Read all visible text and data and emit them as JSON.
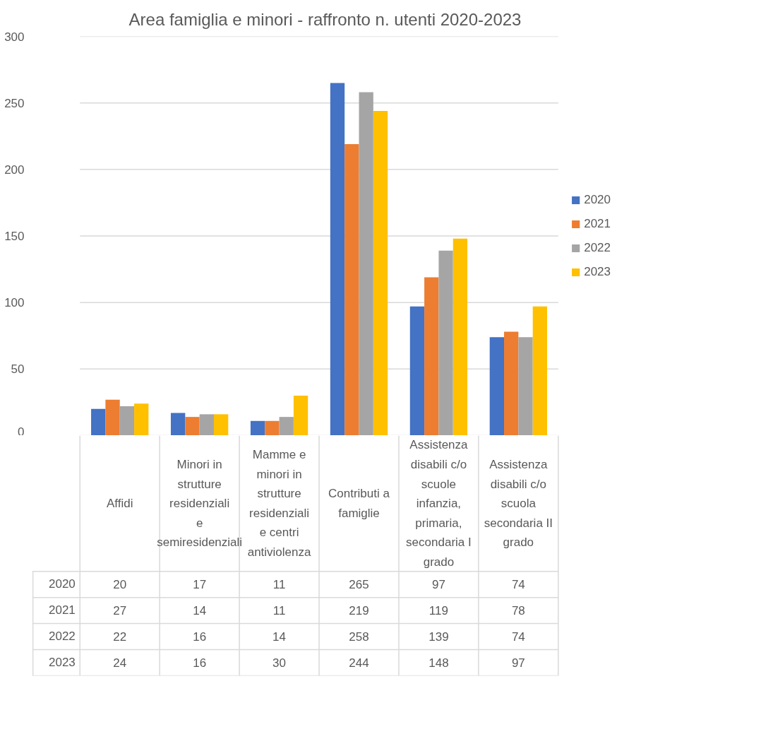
{
  "chart_data": {
    "type": "bar",
    "title": "Area famiglia e minori - raffronto n. utenti 2020-2023",
    "categories": [
      "Affidi",
      "Minori in strutture residenziali e semiresidenziali",
      "Mamme e minori in strutture residenziali e centri antiviolenza",
      "Contributi a famiglie",
      "Assistenza disabili c/o scuole infanzia, primaria, secondaria I grado",
      "Assistenza disabili c/o scuola secondaria II grado"
    ],
    "series": [
      {
        "name": "2020",
        "color": "#4472c4",
        "values": [
          20,
          17,
          11,
          265,
          97,
          74
        ]
      },
      {
        "name": "2021",
        "color": "#ed7d31",
        "values": [
          27,
          14,
          11,
          219,
          119,
          78
        ]
      },
      {
        "name": "2022",
        "color": "#a5a5a5",
        "values": [
          22,
          16,
          14,
          258,
          139,
          74
        ]
      },
      {
        "name": "2023",
        "color": "#ffc000",
        "values": [
          24,
          16,
          30,
          244,
          148,
          97
        ]
      }
    ],
    "ylim": [
      0,
      300
    ],
    "yticks": [
      0,
      50,
      100,
      150,
      200,
      250,
      300
    ],
    "grid": "y",
    "legend": "right",
    "data_labels": true
  }
}
